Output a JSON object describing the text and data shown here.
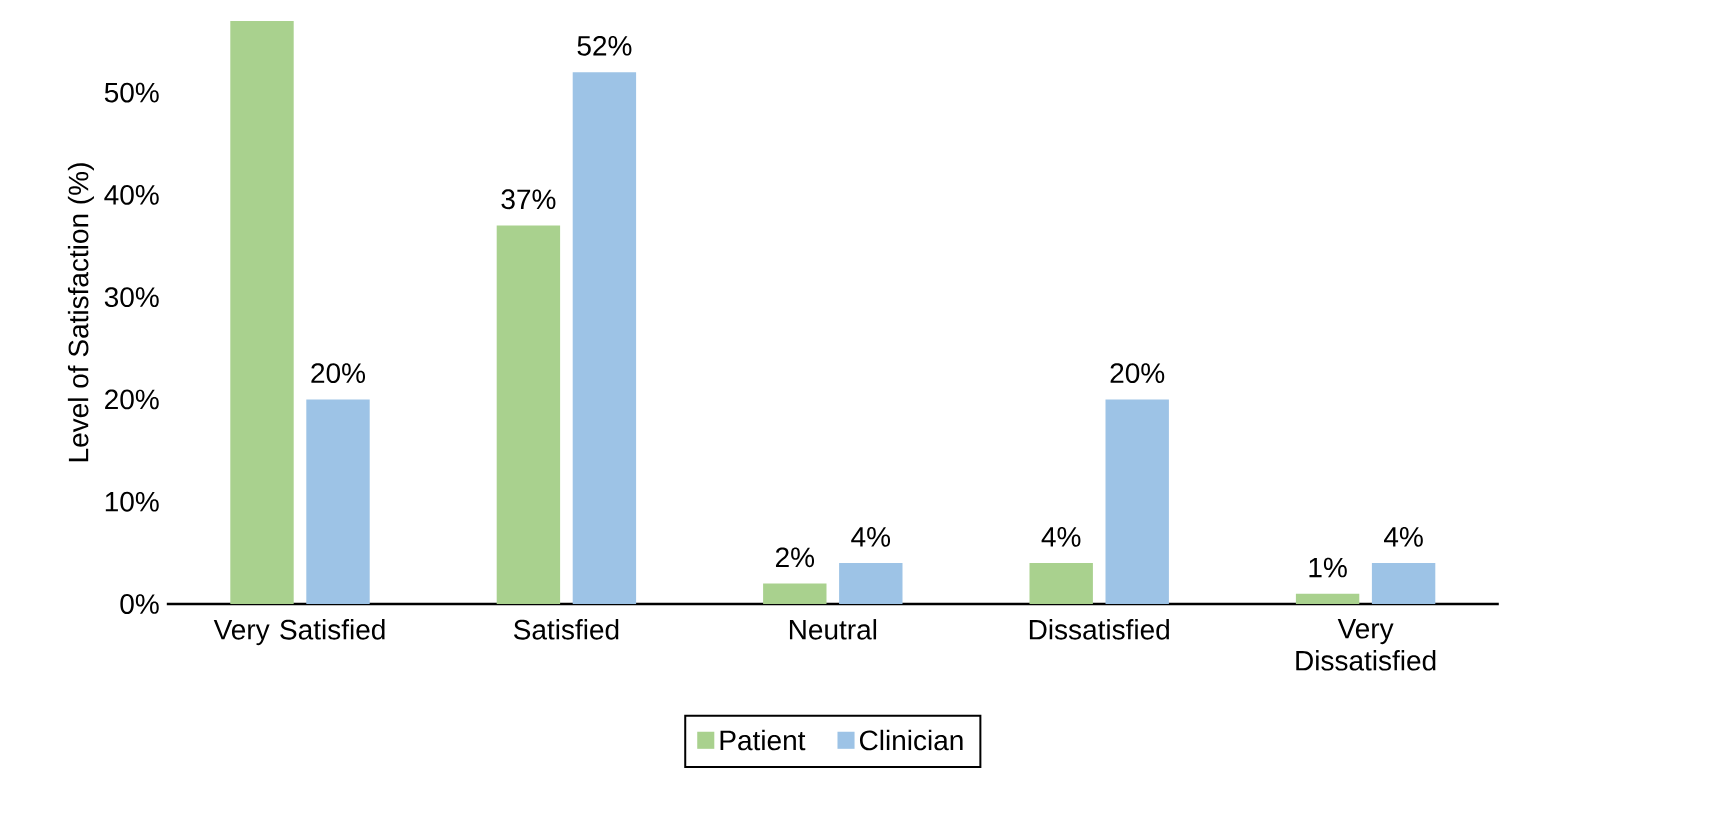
{
  "chart_data": {
    "type": "bar",
    "ylabel": "Level of Satisfaction (%)",
    "categories": [
      "Very Satisfied",
      "Satisfied",
      "Neutral",
      "Dissatisfied",
      "Very Dissatisfied"
    ],
    "series": [
      {
        "name": "Patient",
        "color": "#a9d18e",
        "values": [
          57,
          37,
          2,
          4,
          1
        ],
        "value_labels": [
          null,
          "37%",
          "2%",
          "4%",
          "1%"
        ]
      },
      {
        "name": "Clinician",
        "color": "#9dc3e6",
        "values": [
          20,
          52,
          4,
          20,
          4
        ],
        "value_labels": [
          "20%",
          "52%",
          "4%",
          "20%",
          "4%"
        ]
      }
    ],
    "ylim": [
      0,
      57
    ],
    "yticks": [
      {
        "value": 0,
        "label": "0%"
      },
      {
        "value": 10,
        "label": "10%"
      },
      {
        "value": 20,
        "label": "20%"
      },
      {
        "value": 30,
        "label": "30%"
      },
      {
        "value": 40,
        "label": "40%"
      },
      {
        "value": 50,
        "label": "50%"
      }
    ],
    "legend": "bottom",
    "grid": false
  }
}
